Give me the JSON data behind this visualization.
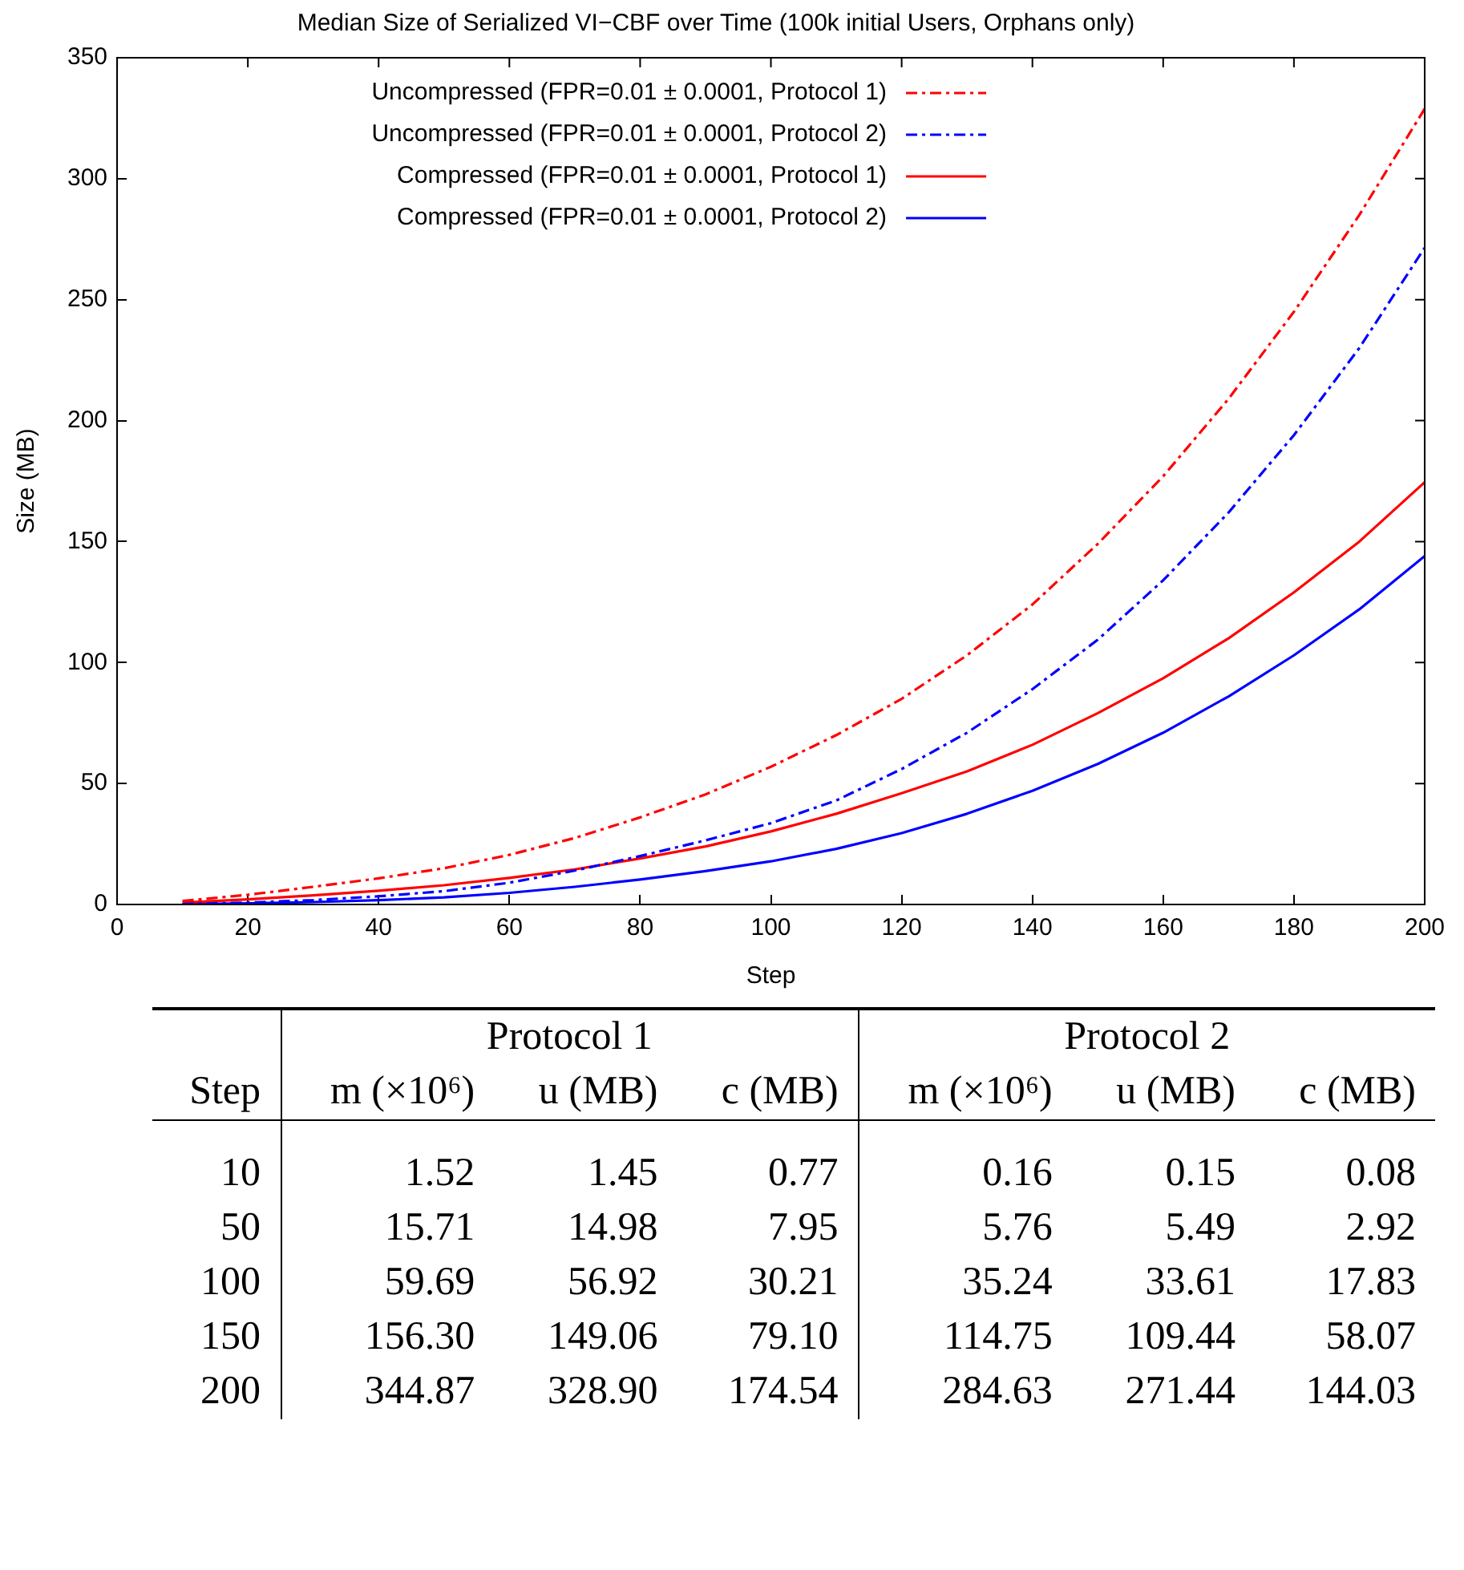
{
  "chart_data": [
    {
      "type": "line",
      "title": "Median Size of Serialized VI−CBF over Time (100k initial Users, Orphans only)",
      "xlabel": "Step",
      "ylabel": "Size (MB)",
      "xlim": [
        0,
        200
      ],
      "ylim": [
        0,
        350
      ],
      "xticks": [
        0,
        20,
        40,
        60,
        80,
        100,
        120,
        140,
        160,
        180,
        200
      ],
      "yticks": [
        0,
        50,
        100,
        150,
        200,
        250,
        300,
        350
      ],
      "grid": false,
      "legend": "top left",
      "marker": "none",
      "x": [
        10,
        20,
        30,
        40,
        50,
        60,
        70,
        80,
        90,
        100,
        110,
        120,
        130,
        140,
        150,
        160,
        170,
        180,
        190,
        200
      ],
      "series": [
        {
          "name": "Uncompressed (FPR=0.01 ± 0.0001, Protocol 1)",
          "color": "#ff0000",
          "line_style": "dashed",
          "values": [
            1.45,
            4.0,
            7.3,
            10.8,
            14.98,
            20.5,
            27.5,
            36,
            45.5,
            56.92,
            70,
            85,
            103,
            124,
            149.06,
            177,
            209,
            245,
            285,
            328.9
          ]
        },
        {
          "name": "Uncompressed (FPR=0.01 ± 0.0001, Protocol 2)",
          "color": "#0000ff",
          "line_style": "dashed",
          "values": [
            0.15,
            0.8,
            1.8,
            3.4,
            5.49,
            9,
            14,
            20,
            26.5,
            33.61,
            43,
            56,
            71,
            89,
            109.44,
            134,
            162,
            194,
            230,
            271.44
          ]
        },
        {
          "name": "Compressed (FPR=0.01 ± 0.0001, Protocol 1)",
          "color": "#ff0000",
          "line_style": "solid",
          "values": [
            0.77,
            2.1,
            3.8,
            5.7,
            7.95,
            11,
            14.5,
            19,
            24,
            30.21,
            37.5,
            46,
            55,
            66,
            79.1,
            93.5,
            110,
            129,
            150,
            174.54
          ]
        },
        {
          "name": "Compressed (FPR=0.01 ± 0.0001, Protocol 2)",
          "color": "#0000ff",
          "line_style": "solid",
          "values": [
            0.08,
            0.45,
            1.0,
            1.8,
            2.92,
            4.8,
            7.3,
            10.3,
            13.8,
            17.83,
            23,
            29.5,
            37.5,
            47,
            58.07,
            71,
            86,
            103,
            122,
            144.03
          ]
        }
      ]
    },
    {
      "type": "other",
      "xlabel": "Step",
      "annotations": [
        "Protocol 1",
        "Protocol 2"
      ],
      "categories": [
        "10",
        "50",
        "100",
        "150",
        "200"
      ],
      "series": [
        {
          "name": "m (×10⁶)",
          "values": [
            1.52,
            15.71,
            59.69,
            156.3,
            344.87
          ],
          "value_labels": [
            "1.52",
            "15.71",
            "59.69",
            "156.30",
            "344.87"
          ]
        },
        {
          "name": "u (MB)",
          "values": [
            1.45,
            14.98,
            56.92,
            149.06,
            328.9
          ],
          "value_labels": [
            "1.45",
            "14.98",
            "56.92",
            "149.06",
            "328.90"
          ]
        },
        {
          "name": "c (MB)",
          "values": [
            0.77,
            7.95,
            30.21,
            79.1,
            174.54
          ],
          "value_labels": [
            "0.77",
            "7.95",
            "30.21",
            "79.10",
            "174.54"
          ]
        },
        {
          "name": "m (×10⁶)",
          "values": [
            0.16,
            5.76,
            35.24,
            114.75,
            284.63
          ],
          "value_labels": [
            "0.16",
            "5.76",
            "35.24",
            "114.75",
            "284.63"
          ]
        },
        {
          "name": "u (MB)",
          "values": [
            0.15,
            5.49,
            33.61,
            109.44,
            271.44
          ],
          "value_labels": [
            "0.15",
            "5.49",
            "33.61",
            "109.44",
            "271.44"
          ]
        },
        {
          "name": "c (MB)",
          "values": [
            0.08,
            2.92,
            17.83,
            58.07,
            144.03
          ],
          "value_labels": [
            "0.08",
            "2.92",
            "17.83",
            "58.07",
            "144.03"
          ]
        }
      ]
    }
  ]
}
